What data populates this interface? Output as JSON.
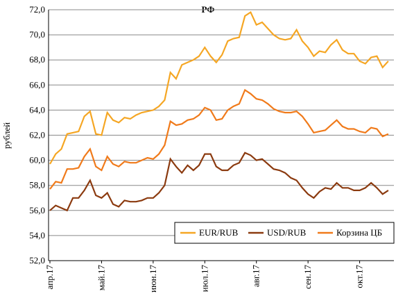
{
  "chart_data": {
    "type": "line",
    "title": "РФ",
    "y_label": "рублей",
    "categories": [
      "апр.17",
      null,
      null,
      null,
      null,
      null,
      null,
      null,
      null,
      "май.17",
      null,
      null,
      null,
      null,
      null,
      null,
      null,
      null,
      "июн.17",
      null,
      null,
      null,
      null,
      null,
      null,
      null,
      null,
      "июл.17",
      null,
      null,
      null,
      null,
      null,
      null,
      null,
      null,
      "авг.17",
      null,
      null,
      null,
      null,
      null,
      null,
      null,
      null,
      "сен.17",
      null,
      null,
      null,
      null,
      null,
      null,
      null,
      null,
      "окт.17",
      null,
      null,
      null,
      null,
      null
    ],
    "series": [
      {
        "name": "EUR/RUB",
        "color": "#f5a623",
        "values": [
          59.7,
          60.5,
          60.9,
          62.1,
          62.2,
          62.3,
          63.5,
          63.9,
          62.1,
          62.0,
          63.8,
          63.2,
          63.0,
          63.4,
          63.3,
          63.6,
          63.8,
          63.9,
          64.0,
          64.3,
          64.8,
          67.0,
          66.5,
          67.6,
          67.8,
          68.0,
          68.3,
          69.0,
          68.3,
          67.8,
          68.4,
          69.5,
          69.7,
          69.8,
          71.5,
          71.8,
          70.8,
          71.0,
          70.5,
          70.0,
          69.7,
          69.6,
          69.7,
          70.4,
          69.5,
          69.0,
          68.3,
          68.7,
          68.6,
          69.2,
          69.6,
          68.8,
          68.5,
          68.5,
          67.9,
          67.7,
          68.2,
          68.3,
          67.4,
          67.9
        ]
      },
      {
        "name": "USD/RUB",
        "color": "#8b3a0f",
        "values": [
          56.0,
          56.4,
          56.2,
          56.0,
          57.0,
          57.0,
          57.6,
          58.4,
          57.2,
          57.0,
          57.4,
          56.5,
          56.3,
          56.8,
          56.7,
          56.7,
          56.8,
          57.0,
          57.0,
          57.4,
          58.0,
          60.1,
          59.5,
          59.0,
          59.6,
          59.2,
          59.6,
          60.5,
          60.5,
          59.5,
          59.2,
          59.2,
          59.6,
          59.8,
          60.6,
          60.4,
          60.0,
          60.1,
          59.7,
          59.3,
          59.2,
          59.0,
          58.6,
          58.4,
          57.8,
          57.3,
          57.0,
          57.5,
          57.8,
          57.7,
          58.2,
          57.8,
          57.8,
          57.6,
          57.6,
          57.8,
          58.2,
          57.8,
          57.3,
          57.6
        ]
      },
      {
        "name": "Корзина ЦБ",
        "color": "#f07a1a",
        "values": [
          57.7,
          58.3,
          58.2,
          59.3,
          59.3,
          59.4,
          60.3,
          60.9,
          59.5,
          59.2,
          60.3,
          59.7,
          59.5,
          59.9,
          59.8,
          59.8,
          60.0,
          60.2,
          60.1,
          60.5,
          61.2,
          63.1,
          62.8,
          62.9,
          63.2,
          63.3,
          63.6,
          64.2,
          64.0,
          63.2,
          63.3,
          64.0,
          64.3,
          64.5,
          65.6,
          65.3,
          64.9,
          64.8,
          64.5,
          64.1,
          63.9,
          63.8,
          63.8,
          63.9,
          63.5,
          62.9,
          62.2,
          62.3,
          62.4,
          62.8,
          63.2,
          62.7,
          62.5,
          62.5,
          62.3,
          62.2,
          62.6,
          62.5,
          61.9,
          62.1
        ]
      }
    ],
    "ylim": [
      52,
      72
    ],
    "yticks": [
      {
        "value": 52,
        "label": "52,0"
      },
      {
        "value": 54,
        "label": "54,0"
      },
      {
        "value": 56,
        "label": "56,0"
      },
      {
        "value": 58,
        "label": "58,0"
      },
      {
        "value": 60,
        "label": "60,0"
      },
      {
        "value": 62,
        "label": "62,0"
      },
      {
        "value": 64,
        "label": "64,0"
      },
      {
        "value": 66,
        "label": "66,0"
      },
      {
        "value": 68,
        "label": "68,0"
      },
      {
        "value": 70,
        "label": "70,0"
      },
      {
        "value": 72,
        "label": "72,0"
      }
    ],
    "grid": true,
    "legend": "lower right"
  }
}
